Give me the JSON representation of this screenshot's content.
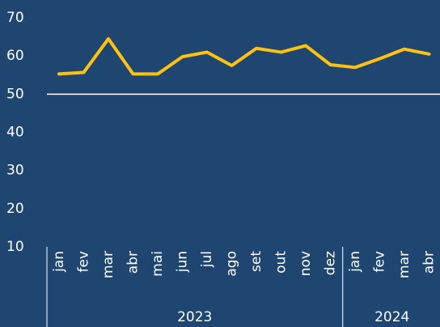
{
  "chart_data": {
    "type": "line",
    "year_groups": [
      {
        "label": "2023",
        "categories": [
          "jan",
          "fev",
          "mar",
          "abr",
          "mai",
          "jun",
          "jul",
          "ago",
          "set",
          "out",
          "nov",
          "dez"
        ]
      },
      {
        "label": "2024",
        "categories": [
          "jan",
          "fev",
          "mar",
          "abr"
        ]
      }
    ],
    "series": [
      {
        "color": "#ffc20e",
        "values": [
          55.3,
          55.7,
          64.5,
          55.3,
          55.3,
          59.8,
          61.0,
          57.5,
          62.0,
          61.0,
          62.7,
          57.7,
          57.0,
          59.3,
          61.8,
          60.5
        ]
      }
    ],
    "ylim": [
      10,
      70
    ],
    "yticks": [
      10,
      20,
      30,
      40,
      50,
      60,
      70
    ],
    "reference_line": 50
  }
}
